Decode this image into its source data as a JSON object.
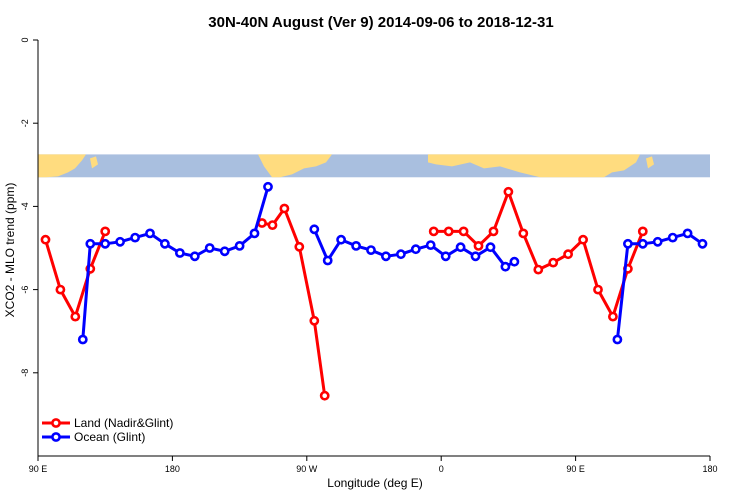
{
  "chart_data": {
    "type": "line",
    "title": "30N-40N August (Ver 9)   2014-09-06 to 2018-12-31",
    "xlabel": "Longitude (deg E)",
    "ylabel": "XCO2 - MLO trend (ppm)",
    "xlim": [
      90,
      540
    ],
    "ylim": [
      -10,
      0
    ],
    "x_ticks": [
      {
        "value": 90,
        "label": "90 E"
      },
      {
        "value": 180,
        "label": "180"
      },
      {
        "value": 270,
        "label": "90 W"
      },
      {
        "value": 360,
        "label": "0"
      },
      {
        "value": 450,
        "label": "90 E"
      },
      {
        "value": 540,
        "label": "180"
      }
    ],
    "y_ticks": [
      {
        "value": 0,
        "label": "0"
      },
      {
        "value": -2,
        "label": "-2"
      },
      {
        "value": -4,
        "label": "-4"
      },
      {
        "value": -6,
        "label": "-6"
      },
      {
        "value": -8,
        "label": "-8"
      }
    ],
    "grid": false,
    "legend_position": "bottom-left",
    "map_strip": {
      "y_top": -2.75,
      "y_bottom": -3.3,
      "ocean_color": "#a9bfdf",
      "land_color": "#ffdc7f"
    },
    "series": [
      {
        "name": "Land (Nadir&Glint)",
        "color": "#ff0000",
        "segments": [
          [
            [
              95,
              -4.8
            ],
            [
              105,
              -6.0
            ],
            [
              115,
              -6.65
            ],
            [
              125,
              -5.5
            ],
            [
              135,
              -4.6
            ]
          ],
          [
            [
              240,
              -4.4
            ],
            [
              247,
              -4.45
            ],
            [
              255,
              -4.05
            ],
            [
              265,
              -4.97
            ],
            [
              275,
              -6.75
            ],
            [
              282,
              -8.55
            ]
          ],
          [
            [
              355,
              -4.6
            ],
            [
              365,
              -4.6
            ],
            [
              375,
              -4.6
            ],
            [
              385,
              -4.95
            ],
            [
              395,
              -4.6
            ],
            [
              405,
              -3.65
            ],
            [
              415,
              -4.65
            ],
            [
              425,
              -5.52
            ],
            [
              435,
              -5.35
            ],
            [
              445,
              -5.15
            ],
            [
              455,
              -4.8
            ],
            [
              465,
              -6.0
            ],
            [
              475,
              -6.65
            ],
            [
              485,
              -5.5
            ],
            [
              495,
              -4.6
            ]
          ]
        ]
      },
      {
        "name": "Ocean (Glint)",
        "color": "#0000ff",
        "segments": [
          [
            [
              120,
              -7.2
            ],
            [
              125,
              -4.9
            ],
            [
              135,
              -4.9
            ],
            [
              145,
              -4.85
            ],
            [
              155,
              -4.75
            ],
            [
              165,
              -4.65
            ],
            [
              175,
              -4.9
            ],
            [
              185,
              -5.12
            ],
            [
              195,
              -5.2
            ],
            [
              205,
              -5.0
            ],
            [
              215,
              -5.08
            ],
            [
              225,
              -4.95
            ],
            [
              235,
              -4.65
            ],
            [
              244,
              -3.53
            ]
          ],
          [
            [
              275,
              -4.55
            ],
            [
              284,
              -5.3
            ],
            [
              293,
              -4.8
            ],
            [
              303,
              -4.95
            ],
            [
              313,
              -5.05
            ],
            [
              323,
              -5.2
            ],
            [
              333,
              -5.15
            ],
            [
              343,
              -5.03
            ],
            [
              353,
              -4.93
            ],
            [
              363,
              -5.2
            ],
            [
              373,
              -4.98
            ],
            [
              383,
              -5.2
            ],
            [
              393,
              -4.98
            ],
            [
              403,
              -5.45
            ],
            [
              409,
              -5.33
            ]
          ],
          [
            [
              478,
              -7.2
            ],
            [
              485,
              -4.9
            ],
            [
              495,
              -4.9
            ],
            [
              505,
              -4.85
            ],
            [
              515,
              -4.75
            ],
            [
              525,
              -4.65
            ],
            [
              535,
              -4.9
            ]
          ]
        ]
      }
    ]
  }
}
